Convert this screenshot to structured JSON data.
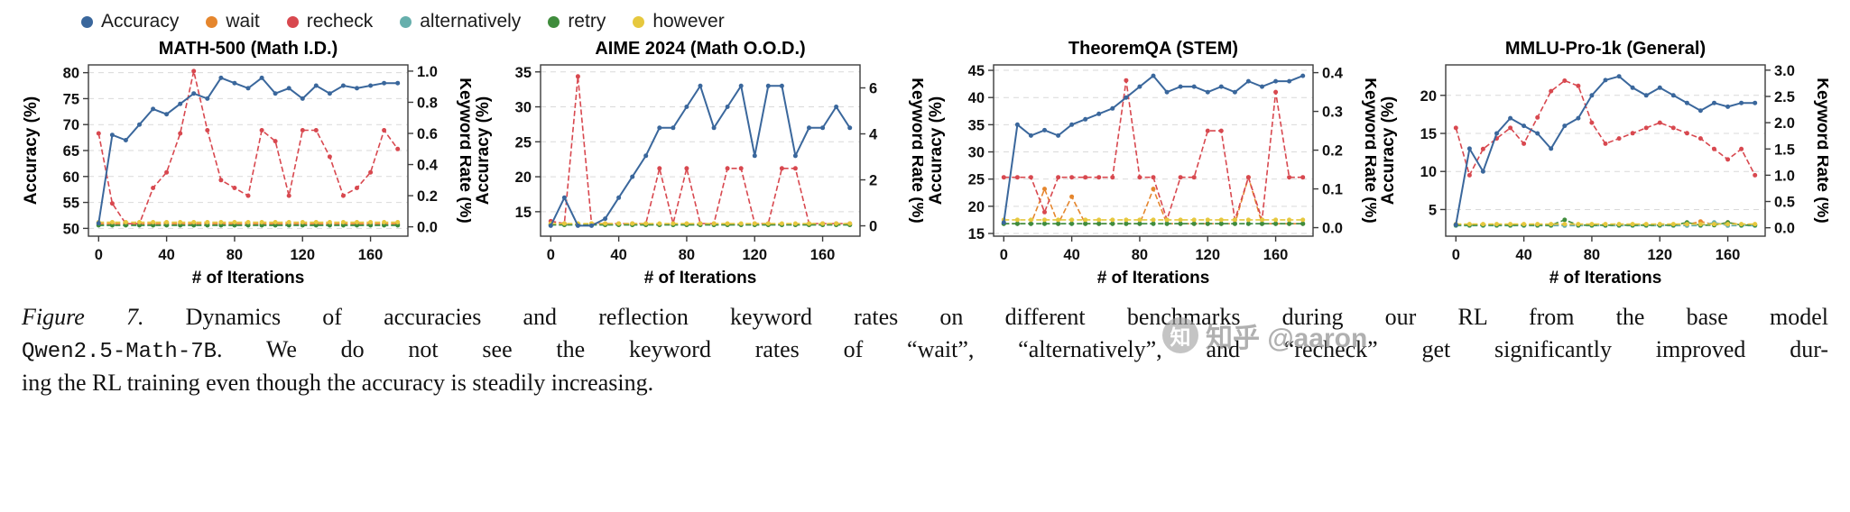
{
  "colors": {
    "accuracy": "#3a679c",
    "wait": "#e5862d",
    "recheck": "#d8484f",
    "alternatively": "#66afac",
    "retry": "#3f8c3c",
    "however": "#e6c83e",
    "grid": "#d9d9d9",
    "axis": "#3c3c3c"
  },
  "legend": {
    "items": [
      {
        "label": "Accuracy",
        "key": "accuracy"
      },
      {
        "label": "wait",
        "key": "wait"
      },
      {
        "label": "recheck",
        "key": "recheck"
      },
      {
        "label": "alternatively",
        "key": "alternatively"
      },
      {
        "label": "retry",
        "key": "retry"
      },
      {
        "label": "however",
        "key": "however"
      }
    ]
  },
  "caption": {
    "line1_label": "Figure 7.",
    "line1_rest": " Dynamics of accuracies and reflection keyword rates on different benchmarks during our RL from the base model",
    "line2_mono": "Qwen2.5-Math-7B",
    "line2_rest": ". We do not see the keyword rates of “wait”, “alternatively”, and “recheck” get significantly improved dur-",
    "line3": "ing the RL training even though the accuracy is steadily increasing."
  },
  "watermark": {
    "logo_char": "知",
    "text": "知乎 @aaron"
  },
  "chart_data": [
    {
      "type": "line",
      "title": "MATH-500 (Math I.D.)",
      "xlabel": "# of Iterations",
      "ylabel_left": "Accuracy (%)",
      "ylabel_right": "Keyword Rate (%)",
      "x": [
        0,
        8,
        16,
        24,
        32,
        40,
        48,
        56,
        64,
        72,
        80,
        88,
        96,
        104,
        112,
        120,
        128,
        136,
        144,
        152,
        160,
        168,
        176
      ],
      "xticks": [
        0,
        40,
        80,
        120,
        160
      ],
      "xlim": [
        -6,
        182
      ],
      "left_ylim": [
        48.5,
        81.5
      ],
      "left_ticks": [
        "50",
        "55",
        "60",
        "65",
        "70",
        "75",
        "80"
      ],
      "right_ylim": [
        -0.06,
        1.04
      ],
      "right_ticks": [
        "0.0",
        "0.2",
        "0.4",
        "0.6",
        "0.8",
        "1.0"
      ],
      "series": [
        {
          "name": "wait",
          "key": "wait",
          "axis": "right",
          "dashed": true,
          "values": [
            0.02,
            0.02,
            0.02,
            0.02,
            0.02,
            0.02,
            0.02,
            0.02,
            0.02,
            0.02,
            0.02,
            0.02,
            0.02,
            0.02,
            0.02,
            0.02,
            0.02,
            0.02,
            0.02,
            0.02,
            0.02,
            0.02,
            0.02
          ]
        },
        {
          "name": "recheck",
          "key": "recheck",
          "axis": "right",
          "dashed": true,
          "values": [
            0.6,
            0.15,
            0.02,
            0.02,
            0.25,
            0.35,
            0.6,
            1.0,
            0.62,
            0.3,
            0.25,
            0.2,
            0.62,
            0.55,
            0.2,
            0.62,
            0.62,
            0.45,
            0.2,
            0.25,
            0.35,
            0.62,
            0.5
          ]
        },
        {
          "name": "alternatively",
          "key": "alternatively",
          "axis": "right",
          "dashed": true,
          "values": [
            0.01,
            0.01,
            0.01,
            0.01,
            0.01,
            0.01,
            0.01,
            0.01,
            0.01,
            0.01,
            0.01,
            0.01,
            0.01,
            0.01,
            0.01,
            0.01,
            0.01,
            0.01,
            0.01,
            0.01,
            0.01,
            0.01,
            0.01
          ]
        },
        {
          "name": "retry",
          "key": "retry",
          "axis": "right",
          "dashed": true,
          "values": [
            0.01,
            0.01,
            0.01,
            0.01,
            0.01,
            0.01,
            0.01,
            0.01,
            0.01,
            0.01,
            0.01,
            0.01,
            0.01,
            0.01,
            0.01,
            0.01,
            0.01,
            0.01,
            0.01,
            0.01,
            0.01,
            0.01,
            0.01
          ]
        },
        {
          "name": "however",
          "key": "however",
          "axis": "right",
          "dashed": true,
          "values": [
            0.03,
            0.03,
            0.03,
            0.03,
            0.03,
            0.03,
            0.03,
            0.03,
            0.03,
            0.03,
            0.03,
            0.03,
            0.03,
            0.03,
            0.03,
            0.03,
            0.03,
            0.03,
            0.03,
            0.03,
            0.03,
            0.03,
            0.03
          ]
        },
        {
          "name": "Accuracy",
          "key": "accuracy",
          "axis": "left",
          "dashed": false,
          "values": [
            51,
            68,
            67,
            70,
            73,
            72,
            74,
            76,
            75,
            79,
            78,
            77,
            79,
            76,
            77,
            75,
            77.5,
            76,
            77.5,
            77,
            77.5,
            78,
            78
          ]
        }
      ]
    },
    {
      "type": "line",
      "title": "AIME 2024 (Math O.O.D.)",
      "xlabel": "# of Iterations",
      "ylabel_left": "Accuracy (%)",
      "ylabel_right": "Keyword Rate (%)",
      "x": [
        0,
        8,
        16,
        24,
        32,
        40,
        48,
        56,
        64,
        72,
        80,
        88,
        96,
        104,
        112,
        120,
        128,
        136,
        144,
        152,
        160,
        168,
        176
      ],
      "xticks": [
        0,
        40,
        80,
        120,
        160
      ],
      "xlim": [
        -6,
        182
      ],
      "left_ylim": [
        11.5,
        36
      ],
      "left_ticks": [
        "15",
        "20",
        "25",
        "30",
        "35"
      ],
      "right_ylim": [
        -0.45,
        7.0
      ],
      "right_ticks": [
        "0",
        "2",
        "4",
        "6"
      ],
      "series": [
        {
          "name": "wait",
          "key": "wait",
          "axis": "right",
          "dashed": true,
          "values": [
            0.05,
            0.05,
            0.05,
            0.05,
            0.05,
            0.05,
            0.05,
            0.05,
            0.05,
            0.05,
            0.05,
            0.05,
            0.05,
            0.05,
            0.05,
            0.05,
            0.05,
            0.05,
            0.05,
            0.05,
            0.05,
            0.05,
            0.05
          ]
        },
        {
          "name": "recheck",
          "key": "recheck",
          "axis": "right",
          "dashed": true,
          "values": [
            0.2,
            0.1,
            6.5,
            0.1,
            0.1,
            0.1,
            0.1,
            0.1,
            2.5,
            0.1,
            2.5,
            0.1,
            0.1,
            2.5,
            2.5,
            0.1,
            0.1,
            2.5,
            2.5,
            0.1,
            0.1,
            0.1,
            0.1
          ]
        },
        {
          "name": "alternatively",
          "key": "alternatively",
          "axis": "right",
          "dashed": true,
          "values": [
            0.04,
            0.04,
            0.04,
            0.04,
            0.04,
            0.04,
            0.04,
            0.04,
            0.04,
            0.04,
            0.04,
            0.04,
            0.04,
            0.04,
            0.04,
            0.04,
            0.04,
            0.04,
            0.04,
            0.04,
            0.04,
            0.04,
            0.04
          ]
        },
        {
          "name": "retry",
          "key": "retry",
          "axis": "right",
          "dashed": true,
          "values": [
            0.04,
            0.04,
            0.04,
            0.04,
            0.04,
            0.04,
            0.04,
            0.04,
            0.04,
            0.04,
            0.04,
            0.04,
            0.04,
            0.04,
            0.04,
            0.04,
            0.04,
            0.04,
            0.04,
            0.04,
            0.04,
            0.04,
            0.04
          ]
        },
        {
          "name": "however",
          "key": "however",
          "axis": "right",
          "dashed": true,
          "values": [
            0.1,
            0.1,
            0.1,
            0.1,
            0.1,
            0.1,
            0.1,
            0.1,
            0.1,
            0.1,
            0.1,
            0.1,
            0.1,
            0.1,
            0.1,
            0.1,
            0.1,
            0.1,
            0.1,
            0.1,
            0.1,
            0.1,
            0.1
          ]
        },
        {
          "name": "Accuracy",
          "key": "accuracy",
          "axis": "left",
          "dashed": false,
          "values": [
            13,
            17,
            13,
            13,
            14,
            17,
            20,
            23,
            27,
            27,
            30,
            33,
            27,
            30,
            33,
            23,
            33,
            33,
            23,
            27,
            27,
            30,
            27
          ]
        }
      ]
    },
    {
      "type": "line",
      "title": "TheoremQA (STEM)",
      "xlabel": "# of Iterations",
      "ylabel_left": "Accuracy (%)",
      "ylabel_right": "Keyword Rate (%)",
      "x": [
        0,
        8,
        16,
        24,
        32,
        40,
        48,
        56,
        64,
        72,
        80,
        88,
        96,
        104,
        112,
        120,
        128,
        136,
        144,
        152,
        160,
        168,
        176
      ],
      "xticks": [
        0,
        40,
        80,
        120,
        160
      ],
      "xlim": [
        -6,
        182
      ],
      "left_ylim": [
        14.5,
        46
      ],
      "left_ticks": [
        "15",
        "20",
        "25",
        "30",
        "35",
        "40",
        "45"
      ],
      "right_ylim": [
        -0.022,
        0.42
      ],
      "right_ticks": [
        "0.0",
        "0.1",
        "0.2",
        "0.3",
        "0.4"
      ],
      "series": [
        {
          "name": "wait",
          "key": "wait",
          "axis": "right",
          "dashed": true,
          "values": [
            0.01,
            0.01,
            0.01,
            0.1,
            0.01,
            0.08,
            0.01,
            0.01,
            0.01,
            0.01,
            0.01,
            0.1,
            0.01,
            0.01,
            0.01,
            0.01,
            0.01,
            0.01,
            0.13,
            0.01,
            0.01,
            0.01,
            0.01
          ]
        },
        {
          "name": "recheck",
          "key": "recheck",
          "axis": "right",
          "dashed": true,
          "values": [
            0.13,
            0.13,
            0.13,
            0.04,
            0.13,
            0.13,
            0.13,
            0.13,
            0.13,
            0.38,
            0.13,
            0.13,
            0.02,
            0.13,
            0.13,
            0.25,
            0.25,
            0.02,
            0.13,
            0.02,
            0.35,
            0.13,
            0.13
          ]
        },
        {
          "name": "alternatively",
          "key": "alternatively",
          "axis": "right",
          "dashed": true,
          "values": [
            0.01,
            0.01,
            0.01,
            0.01,
            0.01,
            0.01,
            0.01,
            0.01,
            0.01,
            0.01,
            0.01,
            0.01,
            0.01,
            0.01,
            0.01,
            0.01,
            0.01,
            0.01,
            0.01,
            0.01,
            0.01,
            0.01,
            0.01
          ]
        },
        {
          "name": "retry",
          "key": "retry",
          "axis": "right",
          "dashed": true,
          "values": [
            0.01,
            0.01,
            0.01,
            0.01,
            0.01,
            0.01,
            0.01,
            0.01,
            0.01,
            0.01,
            0.01,
            0.01,
            0.01,
            0.01,
            0.01,
            0.01,
            0.01,
            0.01,
            0.01,
            0.01,
            0.01,
            0.01,
            0.01
          ]
        },
        {
          "name": "however",
          "key": "however",
          "axis": "right",
          "dashed": true,
          "values": [
            0.02,
            0.02,
            0.02,
            0.02,
            0.02,
            0.02,
            0.02,
            0.02,
            0.02,
            0.02,
            0.02,
            0.02,
            0.02,
            0.02,
            0.02,
            0.02,
            0.02,
            0.02,
            0.02,
            0.02,
            0.02,
            0.02,
            0.02
          ]
        },
        {
          "name": "Accuracy",
          "key": "accuracy",
          "axis": "left",
          "dashed": false,
          "values": [
            17,
            35,
            33,
            34,
            33,
            35,
            36,
            37,
            38,
            40,
            42,
            44,
            41,
            42,
            42,
            41,
            42,
            41,
            43,
            42,
            43,
            43,
            44
          ]
        }
      ]
    },
    {
      "type": "line",
      "title": "MMLU-Pro-1k (General)",
      "xlabel": "# of Iterations",
      "ylabel_left": "Accuracy (%)",
      "ylabel_right": "Keyword Rate (%)",
      "x": [
        0,
        8,
        16,
        24,
        32,
        40,
        48,
        56,
        64,
        72,
        80,
        88,
        96,
        104,
        112,
        120,
        128,
        136,
        144,
        152,
        160,
        168,
        176
      ],
      "xticks": [
        0,
        40,
        80,
        120,
        160
      ],
      "xlim": [
        -6,
        182
      ],
      "left_ylim": [
        1.5,
        24
      ],
      "left_ticks": [
        "5",
        "10",
        "15",
        "20"
      ],
      "right_ylim": [
        -0.16,
        3.1
      ],
      "right_ticks": [
        "0.0",
        "0.5",
        "1.0",
        "1.5",
        "2.0",
        "2.5",
        "3.0"
      ],
      "series": [
        {
          "name": "wait",
          "key": "wait",
          "axis": "right",
          "dashed": true,
          "values": [
            0.06,
            0.06,
            0.06,
            0.06,
            0.06,
            0.06,
            0.06,
            0.06,
            0.06,
            0.06,
            0.06,
            0.06,
            0.06,
            0.06,
            0.06,
            0.06,
            0.06,
            0.06,
            0.12,
            0.06,
            0.1,
            0.06,
            0.06
          ]
        },
        {
          "name": "recheck",
          "key": "recheck",
          "axis": "right",
          "dashed": true,
          "values": [
            1.9,
            1.0,
            1.5,
            1.7,
            1.9,
            1.6,
            2.1,
            2.6,
            2.8,
            2.7,
            2.0,
            1.6,
            1.7,
            1.8,
            1.9,
            2.0,
            1.9,
            1.8,
            1.7,
            1.5,
            1.3,
            1.5,
            1.0
          ]
        },
        {
          "name": "alternatively",
          "key": "alternatively",
          "axis": "right",
          "dashed": true,
          "values": [
            0.04,
            0.04,
            0.04,
            0.04,
            0.04,
            0.04,
            0.04,
            0.04,
            0.04,
            0.04,
            0.04,
            0.04,
            0.04,
            0.04,
            0.04,
            0.04,
            0.04,
            0.04,
            0.04,
            0.1,
            0.04,
            0.04,
            0.04
          ]
        },
        {
          "name": "retry",
          "key": "retry",
          "axis": "right",
          "dashed": true,
          "values": [
            0.05,
            0.05,
            0.05,
            0.05,
            0.05,
            0.05,
            0.05,
            0.05,
            0.15,
            0.05,
            0.05,
            0.05,
            0.05,
            0.05,
            0.05,
            0.05,
            0.05,
            0.1,
            0.05,
            0.05,
            0.1,
            0.05,
            0.05
          ]
        },
        {
          "name": "however",
          "key": "however",
          "axis": "right",
          "dashed": true,
          "values": [
            0.07,
            0.07,
            0.07,
            0.07,
            0.07,
            0.07,
            0.07,
            0.07,
            0.07,
            0.07,
            0.07,
            0.07,
            0.07,
            0.07,
            0.07,
            0.07,
            0.07,
            0.07,
            0.07,
            0.07,
            0.07,
            0.07,
            0.07
          ]
        },
        {
          "name": "Accuracy",
          "key": "accuracy",
          "axis": "left",
          "dashed": false,
          "values": [
            3,
            13,
            10,
            15,
            17,
            16,
            15,
            13,
            16,
            17,
            20,
            22,
            22.5,
            21,
            20,
            21,
            20,
            19,
            18,
            19,
            18.5,
            19,
            19
          ]
        }
      ]
    }
  ]
}
